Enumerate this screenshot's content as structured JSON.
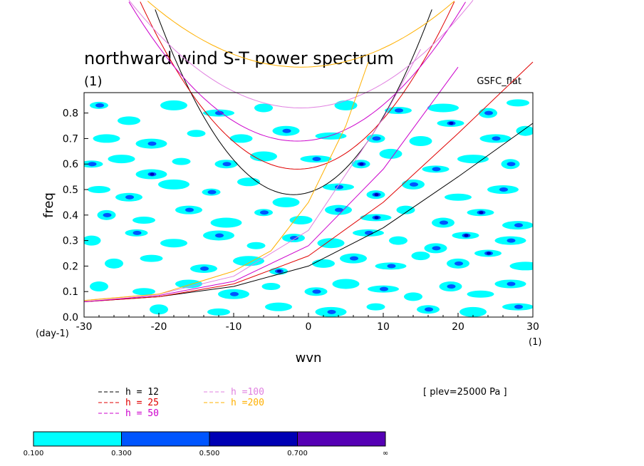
{
  "chart_data": {
    "type": "contour",
    "title": "northward wind S-T power spectrum",
    "subtitle": "(1)",
    "source_label": "GSFC_flat",
    "xlabel": "wvn",
    "ylabel": "freq",
    "x_unit_label": "(1)",
    "y_unit_label": "(day-1)",
    "xlim": [
      -30,
      30
    ],
    "ylim": [
      0,
      0.88
    ],
    "x_ticks": [
      -30,
      -20,
      -10,
      0,
      10,
      20,
      30
    ],
    "y_ticks": [
      0.0,
      0.1,
      0.2,
      0.3,
      0.4,
      0.5,
      0.6,
      0.7,
      0.8
    ],
    "y_tick_labels": [
      "0.0",
      "0.1",
      "0.2",
      "0.3",
      "0.4",
      "0.5",
      "0.6",
      "0.7",
      "0.8"
    ],
    "level_annotation": "[ plev=25000 Pa ]",
    "dispersion_curves": [
      {
        "label": "h = 12",
        "h": 12,
        "color": "#000000",
        "min_wvn": -2,
        "min_freq": 0.48
      },
      {
        "label": "h = 25",
        "h": 25,
        "color": "#e00000",
        "min_wvn": -1.5,
        "min_freq": 0.58
      },
      {
        "label": "h = 50",
        "h": 50,
        "color": "#cc00cc",
        "min_wvn": -1.5,
        "min_freq": 0.69
      },
      {
        "label": "h =100",
        "h": 100,
        "color": "#e080e0",
        "min_wvn": -1,
        "min_freq": 0.82
      },
      {
        "label": "h =200",
        "h": 200,
        "color": "#ffb000",
        "min_wvn": -1,
        "min_freq": 0.98
      }
    ],
    "kelvin_curves": [
      {
        "h": 12,
        "color": "#000000",
        "points": [
          [
            -30,
            0.06
          ],
          [
            -20,
            0.08
          ],
          [
            -10,
            0.12
          ],
          [
            0,
            0.2
          ],
          [
            10,
            0.35
          ],
          [
            20,
            0.55
          ],
          [
            30,
            0.76
          ]
        ]
      },
      {
        "h": 25,
        "color": "#e00000",
        "points": [
          [
            -30,
            0.06
          ],
          [
            -20,
            0.08
          ],
          [
            -10,
            0.13
          ],
          [
            0,
            0.24
          ],
          [
            10,
            0.45
          ],
          [
            20,
            0.72
          ],
          [
            30,
            1.0
          ]
        ]
      },
      {
        "h": 50,
        "color": "#cc00cc",
        "points": [
          [
            -30,
            0.06
          ],
          [
            -20,
            0.085
          ],
          [
            -10,
            0.14
          ],
          [
            0,
            0.28
          ],
          [
            10,
            0.58
          ],
          [
            20,
            0.98
          ]
        ]
      },
      {
        "h": 100,
        "color": "#e080e0",
        "points": [
          [
            -30,
            0.065
          ],
          [
            -20,
            0.09
          ],
          [
            -10,
            0.16
          ],
          [
            0,
            0.34
          ],
          [
            10,
            0.78
          ],
          [
            15,
            1.05
          ]
        ]
      },
      {
        "h": 200,
        "color": "#ffb000",
        "points": [
          [
            -30,
            0.065
          ],
          [
            -20,
            0.09
          ],
          [
            -10,
            0.18
          ],
          [
            -5,
            0.26
          ],
          [
            0,
            0.45
          ],
          [
            5,
            0.75
          ],
          [
            8,
            1.0
          ]
        ]
      }
    ],
    "colorbar": {
      "levels": [
        "0.100",
        "0.300",
        "0.500",
        "0.700",
        "∞"
      ],
      "colors": [
        "#00ffff",
        "#0055ff",
        "#0000b4",
        "#5500b4"
      ]
    },
    "power_blobs": [
      [
        -28,
        0.83,
        1
      ],
      [
        -24,
        0.77,
        0
      ],
      [
        -18,
        0.83,
        0
      ],
      [
        -12,
        0.8,
        1
      ],
      [
        -6,
        0.82,
        0
      ],
      [
        5,
        0.83,
        0
      ],
      [
        12,
        0.81,
        1
      ],
      [
        18,
        0.82,
        0
      ],
      [
        24,
        0.8,
        1
      ],
      [
        28,
        0.84,
        0
      ],
      [
        -27,
        0.7,
        0
      ],
      [
        -21,
        0.68,
        1
      ],
      [
        -15,
        0.72,
        0
      ],
      [
        -9,
        0.7,
        0
      ],
      [
        -3,
        0.73,
        1
      ],
      [
        3,
        0.71,
        0
      ],
      [
        9,
        0.7,
        1
      ],
      [
        15,
        0.69,
        0
      ],
      [
        19,
        0.76,
        2
      ],
      [
        25,
        0.7,
        1
      ],
      [
        29,
        0.73,
        0
      ],
      [
        -29,
        0.6,
        1
      ],
      [
        -25,
        0.62,
        0
      ],
      [
        -21,
        0.56,
        2
      ],
      [
        -17,
        0.61,
        0
      ],
      [
        -11,
        0.6,
        1
      ],
      [
        -6,
        0.63,
        0
      ],
      [
        1,
        0.62,
        1
      ],
      [
        7,
        0.6,
        2
      ],
      [
        11,
        0.64,
        0
      ],
      [
        17,
        0.58,
        1
      ],
      [
        22,
        0.62,
        0
      ],
      [
        27,
        0.6,
        1
      ],
      [
        -28,
        0.5,
        0
      ],
      [
        -24,
        0.47,
        1
      ],
      [
        -18,
        0.52,
        0
      ],
      [
        -13,
        0.49,
        1
      ],
      [
        -8,
        0.53,
        0
      ],
      [
        -3,
        0.45,
        0
      ],
      [
        4,
        0.51,
        1
      ],
      [
        9,
        0.48,
        2
      ],
      [
        14,
        0.52,
        1
      ],
      [
        20,
        0.47,
        0
      ],
      [
        26,
        0.5,
        1
      ],
      [
        -27,
        0.4,
        1
      ],
      [
        -22,
        0.38,
        0
      ],
      [
        -16,
        0.42,
        1
      ],
      [
        -11,
        0.37,
        0
      ],
      [
        -6,
        0.41,
        1
      ],
      [
        -1,
        0.38,
        0
      ],
      [
        4,
        0.42,
        1
      ],
      [
        9,
        0.39,
        2
      ],
      [
        13,
        0.42,
        0
      ],
      [
        18,
        0.37,
        1
      ],
      [
        23,
        0.41,
        2
      ],
      [
        28,
        0.36,
        1
      ],
      [
        -29,
        0.3,
        0
      ],
      [
        -23,
        0.33,
        1
      ],
      [
        -18,
        0.29,
        0
      ],
      [
        -12,
        0.32,
        1
      ],
      [
        -7,
        0.28,
        0
      ],
      [
        -2,
        0.31,
        1
      ],
      [
        3,
        0.29,
        0
      ],
      [
        8,
        0.33,
        1
      ],
      [
        12,
        0.3,
        0
      ],
      [
        17,
        0.27,
        1
      ],
      [
        21,
        0.32,
        2
      ],
      [
        27,
        0.3,
        1
      ],
      [
        -26,
        0.21,
        0
      ],
      [
        -21,
        0.23,
        0
      ],
      [
        -14,
        0.19,
        1
      ],
      [
        -8,
        0.22,
        0
      ],
      [
        -4,
        0.18,
        2
      ],
      [
        2,
        0.21,
        0
      ],
      [
        6,
        0.23,
        1
      ],
      [
        11,
        0.2,
        1
      ],
      [
        15,
        0.24,
        0
      ],
      [
        20,
        0.21,
        1
      ],
      [
        24,
        0.25,
        2
      ],
      [
        29,
        0.2,
        0
      ],
      [
        -28,
        0.12,
        0
      ],
      [
        -22,
        0.1,
        0
      ],
      [
        -16,
        0.13,
        0
      ],
      [
        -10,
        0.09,
        1
      ],
      [
        -5,
        0.12,
        0
      ],
      [
        1,
        0.1,
        1
      ],
      [
        5,
        0.13,
        0
      ],
      [
        10,
        0.11,
        1
      ],
      [
        14,
        0.08,
        0
      ],
      [
        19,
        0.12,
        1
      ],
      [
        23,
        0.09,
        0
      ],
      [
        27,
        0.13,
        1
      ],
      [
        -20,
        0.03,
        0
      ],
      [
        -12,
        0.02,
        0
      ],
      [
        -4,
        0.04,
        0
      ],
      [
        3,
        0.02,
        1
      ],
      [
        9,
        0.04,
        0
      ],
      [
        16,
        0.03,
        1
      ],
      [
        22,
        0.02,
        0
      ],
      [
        28,
        0.04,
        1
      ]
    ]
  }
}
